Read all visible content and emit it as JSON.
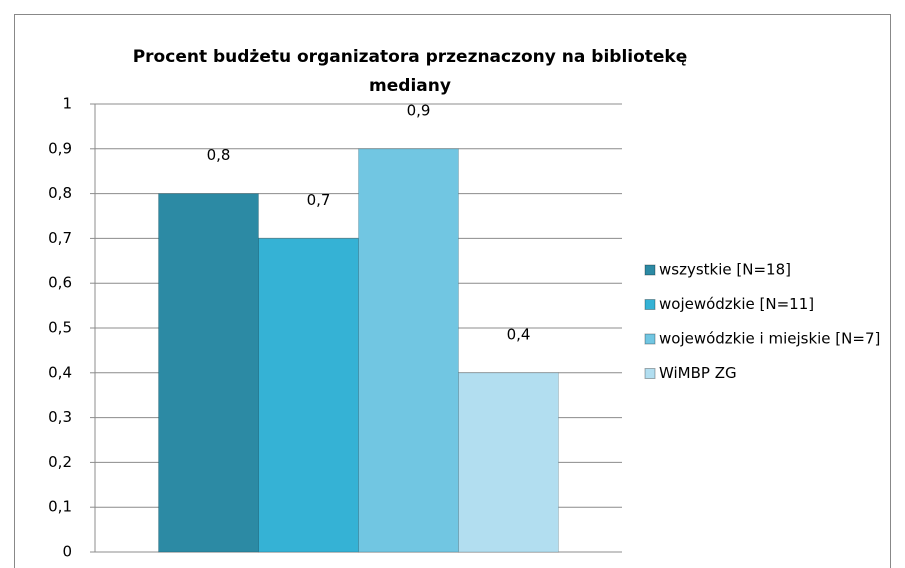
{
  "chart_data": {
    "type": "bar",
    "title": "Procent budżetu organizatora przeznaczony na bibliotekę mediany",
    "categories": [
      null
    ],
    "series": [
      {
        "name": "wszystkie [N=18]",
        "color": "#2c8aa4",
        "values": [
          0.8
        ],
        "value_labels": [
          "0,8"
        ]
      },
      {
        "name": "wojewódzkie [N=11]",
        "color": "#35b2d5",
        "values": [
          0.7
        ],
        "value_labels": [
          "0,7"
        ]
      },
      {
        "name": "wojewódzkie i miejskie [N=7]",
        "color": "#71c6e2",
        "values": [
          0.9
        ],
        "value_labels": [
          "0,9"
        ]
      },
      {
        "name": "WiMBP ZG",
        "color": "#b2def0",
        "values": [
          0.4
        ],
        "value_labels": [
          "0,4"
        ]
      }
    ],
    "ylim": [
      0,
      1
    ],
    "yticks": [
      0,
      {
        "value": 0.1,
        "label": "0,1"
      },
      {
        "value": 0.2,
        "label": "0,2"
      },
      {
        "value": 0.3,
        "label": "0,3"
      },
      {
        "value": 0.4,
        "label": "0,4"
      },
      {
        "value": 0.5,
        "label": "0,5"
      },
      {
        "value": 0.6,
        "label": "0,6"
      },
      {
        "value": 0.7,
        "label": "0,7"
      },
      {
        "value": 0.8,
        "label": "0,8"
      },
      {
        "value": 0.9,
        "label": "0,9"
      },
      1
    ],
    "grid": true,
    "legend": "right"
  }
}
